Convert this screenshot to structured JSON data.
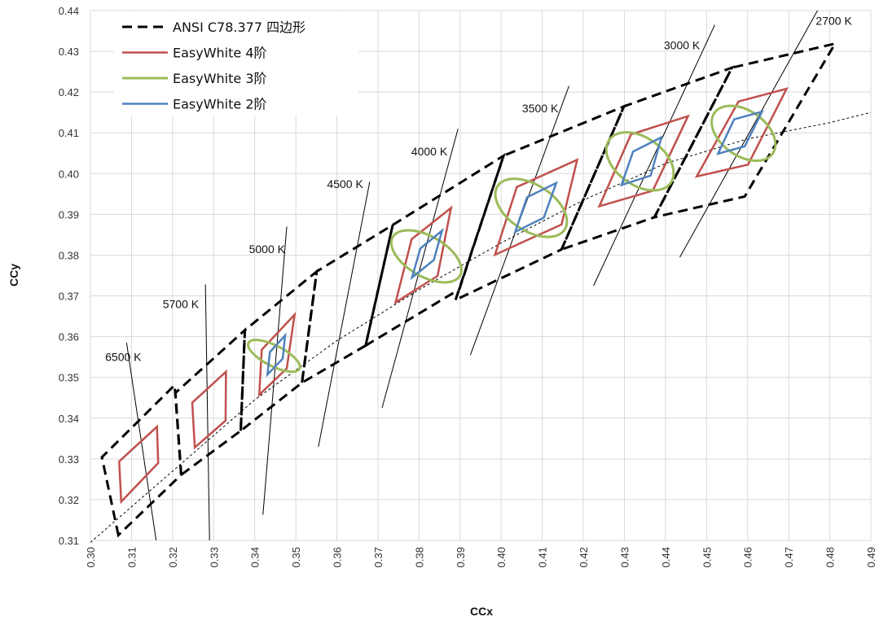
{
  "chart_data": {
    "type": "line",
    "xlabel": "CCx",
    "ylabel": "CCy",
    "xlim": [
      0.3,
      0.49
    ],
    "ylim": [
      0.31,
      0.44
    ],
    "x_ticks": [
      "0.30",
      "0.31",
      "0.32",
      "0.33",
      "0.34",
      "0.35",
      "0.36",
      "0.37",
      "0.38",
      "0.39",
      "0.40",
      "0.41",
      "0.42",
      "0.43",
      "0.44",
      "0.45",
      "0.46",
      "0.47",
      "0.48",
      "0.49"
    ],
    "y_ticks": [
      "0.31",
      "0.32",
      "0.33",
      "0.34",
      "0.35",
      "0.36",
      "0.37",
      "0.38",
      "0.39",
      "0.40",
      "0.41",
      "0.42",
      "0.43",
      "0.44"
    ],
    "grid": true,
    "legend_position": "top-left",
    "colors": {
      "ansi": "#000000",
      "step4": "#c0504d",
      "step3": "#9bbb59",
      "step2": "#4f81bd",
      "grid": "#d9d9d9",
      "isotherm": "#000000",
      "locus": "#000000"
    },
    "series": [
      {
        "name": "ANSI C78.377 四边形",
        "style": "dashed-thick",
        "color": "#000000"
      },
      {
        "name": "EasyWhite 4阶",
        "style": "solid",
        "color": "#c0504d"
      },
      {
        "name": "EasyWhite 3阶",
        "style": "solid",
        "color": "#9bbb59"
      },
      {
        "name": "EasyWhite 2阶",
        "style": "solid",
        "color": "#4f81bd"
      }
    ],
    "cct_labels": [
      "6500 K",
      "5700 K",
      "5000 K",
      "4500 K",
      "4000 K",
      "3500 K",
      "3000 K",
      "2700 K"
    ],
    "ansi_quads": [
      [
        [
          0.3068,
          0.3113
        ],
        [
          0.3028,
          0.3304
        ],
        [
          0.3205,
          0.3481
        ],
        [
          0.3221,
          0.3261
        ]
      ],
      [
        [
          0.3221,
          0.3261
        ],
        [
          0.3207,
          0.3462
        ],
        [
          0.3376,
          0.3616
        ],
        [
          0.3366,
          0.3369
        ]
      ],
      [
        [
          0.3366,
          0.3369
        ],
        [
          0.3376,
          0.3616
        ],
        [
          0.3551,
          0.376
        ],
        [
          0.3515,
          0.3487
        ]
      ],
      [
        [
          0.3515,
          0.3487
        ],
        [
          0.3551,
          0.376
        ],
        [
          0.3736,
          0.3874
        ],
        [
          0.367,
          0.3578
        ]
      ],
      [
        [
          0.367,
          0.3578
        ],
        [
          0.3736,
          0.3874
        ],
        [
          0.4006,
          0.4044
        ],
        [
          0.3898,
          0.3716
        ]
      ],
      [
        [
          0.3889,
          0.369
        ],
        [
          0.4006,
          0.4044
        ],
        [
          0.4299,
          0.4165
        ],
        [
          0.4147,
          0.3814
        ]
      ],
      [
        [
          0.4147,
          0.3814
        ],
        [
          0.4299,
          0.4165
        ],
        [
          0.4562,
          0.426
        ],
        [
          0.4373,
          0.3893
        ]
      ],
      [
        [
          0.4373,
          0.3893
        ],
        [
          0.4562,
          0.426
        ],
        [
          0.4813,
          0.4319
        ],
        [
          0.4593,
          0.3944
        ]
      ]
    ],
    "step4_quads": [
      [
        [
          0.3075,
          0.3195
        ],
        [
          0.307,
          0.3294
        ],
        [
          0.3162,
          0.3379
        ],
        [
          0.3165,
          0.329
        ]
      ],
      [
        [
          0.3254,
          0.3328
        ],
        [
          0.3248,
          0.3438
        ],
        [
          0.333,
          0.3514
        ],
        [
          0.3329,
          0.3394
        ]
      ],
      [
        [
          0.3411,
          0.3457
        ],
        [
          0.3417,
          0.3568
        ],
        [
          0.3497,
          0.3654
        ],
        [
          0.3478,
          0.3522
        ]
      ],
      [
        [
          0.3743,
          0.3684
        ],
        [
          0.3782,
          0.3839
        ],
        [
          0.3878,
          0.3916
        ],
        [
          0.3845,
          0.3749
        ]
      ],
      [
        [
          0.3985,
          0.3801
        ],
        [
          0.4038,
          0.3967
        ],
        [
          0.4185,
          0.4034
        ],
        [
          0.4147,
          0.3875
        ]
      ],
      [
        [
          0.4239,
          0.392
        ],
        [
          0.4316,
          0.4096
        ],
        [
          0.4455,
          0.4141
        ],
        [
          0.4369,
          0.3958
        ]
      ],
      [
        [
          0.4476,
          0.3993
        ],
        [
          0.4578,
          0.4177
        ],
        [
          0.4695,
          0.4208
        ],
        [
          0.4601,
          0.4022
        ]
      ]
    ],
    "step3_ellipses": [
      {
        "cx": 0.3447,
        "cy": 0.3553,
        "rx": 0.0025,
        "ry": 0.007,
        "angle": -63
      },
      {
        "cx": 0.3818,
        "cy": 0.3797,
        "rx": 0.0049,
        "ry": 0.0095,
        "angle": -60
      },
      {
        "cx": 0.4073,
        "cy": 0.3916,
        "rx": 0.0056,
        "ry": 0.0098,
        "angle": -57
      },
      {
        "cx": 0.4338,
        "cy": 0.403,
        "rx": 0.0058,
        "ry": 0.0092,
        "angle": -55
      },
      {
        "cx": 0.459,
        "cy": 0.4099,
        "rx": 0.0055,
        "ry": 0.0087,
        "angle": -55
      }
    ],
    "step2_quads": [
      [
        [
          0.3431,
          0.3507
        ],
        [
          0.3437,
          0.3562
        ],
        [
          0.3474,
          0.3603
        ],
        [
          0.3468,
          0.3546
        ]
      ],
      [
        [
          0.3783,
          0.3745
        ],
        [
          0.3803,
          0.3816
        ],
        [
          0.3856,
          0.386
        ],
        [
          0.3836,
          0.3788
        ]
      ],
      [
        [
          0.4034,
          0.3857
        ],
        [
          0.4063,
          0.3942
        ],
        [
          0.4134,
          0.3977
        ],
        [
          0.4104,
          0.3892
        ]
      ],
      [
        [
          0.4293,
          0.3972
        ],
        [
          0.4321,
          0.4054
        ],
        [
          0.439,
          0.4089
        ],
        [
          0.4364,
          0.3995
        ]
      ],
      [
        [
          0.4528,
          0.4049
        ],
        [
          0.4567,
          0.4133
        ],
        [
          0.4635,
          0.4152
        ],
        [
          0.4593,
          0.4067
        ]
      ]
    ],
    "isotherms": [
      [
        [
          0.3088,
          0.3585
        ],
        [
          0.316,
          0.31
        ]
      ],
      [
        [
          0.328,
          0.3728
        ],
        [
          0.329,
          0.31
        ]
      ],
      [
        [
          0.342,
          0.3163
        ],
        [
          0.3478,
          0.387
        ]
      ],
      [
        [
          0.3555,
          0.333
        ],
        [
          0.368,
          0.398
        ]
      ],
      [
        [
          0.371,
          0.3425
        ],
        [
          0.3895,
          0.411
        ]
      ],
      [
        [
          0.3925,
          0.3555
        ],
        [
          0.4165,
          0.4215
        ]
      ],
      [
        [
          0.4225,
          0.3725
        ],
        [
          0.452,
          0.4365
        ]
      ],
      [
        [
          0.4435,
          0.3795
        ],
        [
          0.477,
          0.44
        ]
      ]
    ],
    "locus": [
      [
        0.3,
        0.3095
      ],
      [
        0.32,
        0.327
      ],
      [
        0.34,
        0.3445
      ],
      [
        0.36,
        0.359
      ],
      [
        0.38,
        0.3715
      ],
      [
        0.4,
        0.383
      ],
      [
        0.42,
        0.3935
      ],
      [
        0.44,
        0.4025
      ],
      [
        0.46,
        0.4085
      ],
      [
        0.48,
        0.4125
      ],
      [
        0.49,
        0.415
      ]
    ]
  }
}
